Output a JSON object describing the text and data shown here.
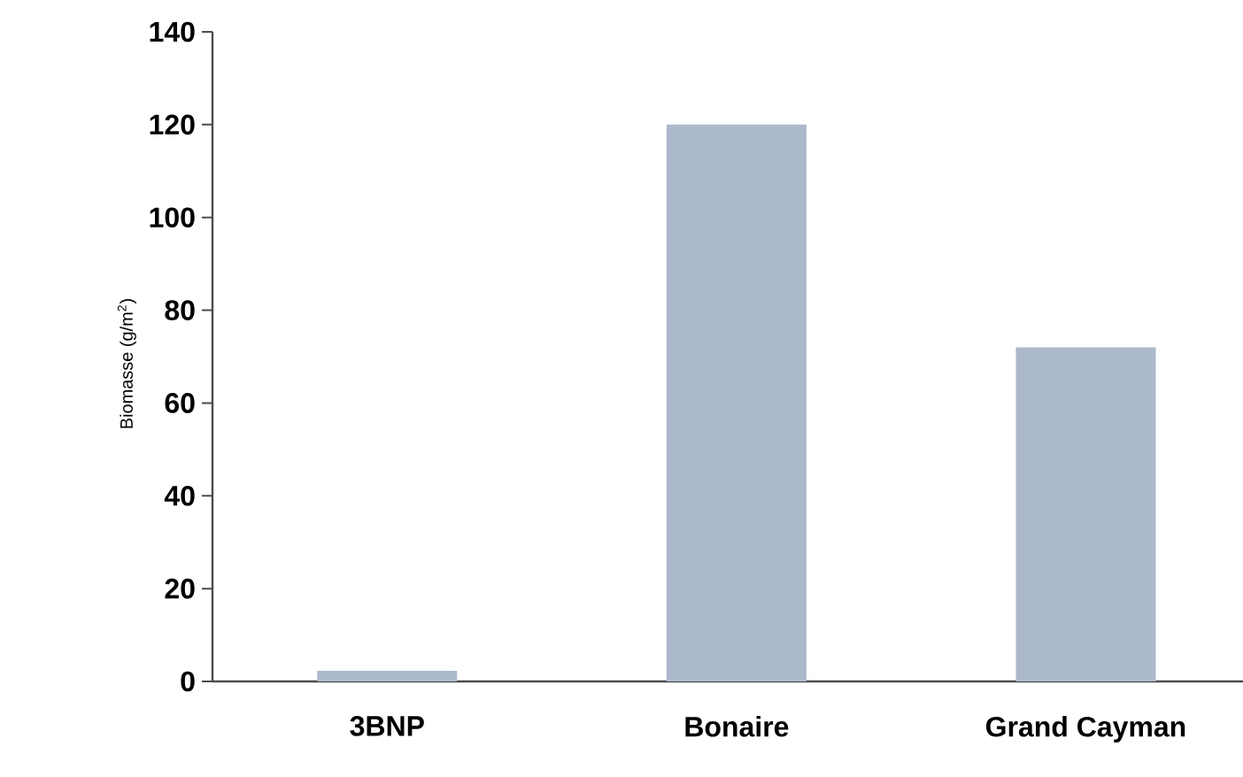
{
  "chart_data": {
    "type": "bar",
    "ylabel": "Biomasse (g/m$^{2}$)",
    "categories": [
      "3BNP",
      "Bonaire",
      "Grand Cayman"
    ],
    "values": [
      2.3,
      120,
      72
    ],
    "color": "#acb8cb",
    "ylim": [
      0,
      140
    ],
    "yticks": [
      0,
      20,
      40,
      60,
      80,
      100,
      120,
      140
    ],
    "grid": false
  }
}
